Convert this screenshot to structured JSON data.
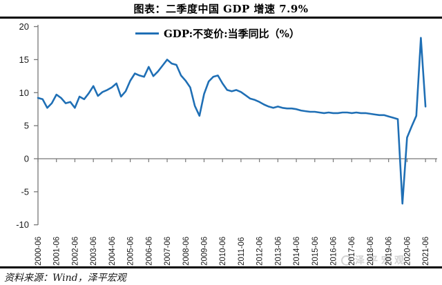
{
  "title": "图表：二季度中国 GDP 增速 7.9%",
  "legend": {
    "label": "GDP:不变价:当季同比（%）"
  },
  "footer": {
    "source": "资料来源：Wind，泽平宏观"
  },
  "watermark": {
    "text": "泽平宏观"
  },
  "colors": {
    "line": "#1F6FB5",
    "axis": "#767676",
    "tick_label": "#1a1a1a",
    "rule": "#000000",
    "watermark": "#a6a6a6"
  },
  "chart_data": {
    "type": "line",
    "title": "图表：二季度中国 GDP 增速 7.9%",
    "series_name": "GDP:不变价:当季同比（%）",
    "ylim": [
      -10,
      20
    ],
    "yticks": [
      20,
      15,
      10,
      5,
      0,
      -5,
      -10
    ],
    "grid": false,
    "legend_position": "top-center",
    "zero_axis_with_ticks": true,
    "xtick_labels": [
      "2000-06",
      "2001-06",
      "2002-06",
      "2003-06",
      "2004-06",
      "2005-06",
      "2006-06",
      "2007-06",
      "2008-06",
      "2009-06",
      "2010-06",
      "2011-06",
      "2012-06",
      "2013-06",
      "2014-06",
      "2015-06",
      "2016-06",
      "2017-06",
      "2018-06",
      "2019-06",
      "2020-06",
      "2021-06"
    ],
    "x": [
      "2000-06",
      "2000-09",
      "2000-12",
      "2001-03",
      "2001-06",
      "2001-09",
      "2001-12",
      "2002-03",
      "2002-06",
      "2002-09",
      "2002-12",
      "2003-03",
      "2003-06",
      "2003-09",
      "2003-12",
      "2004-03",
      "2004-06",
      "2004-09",
      "2004-12",
      "2005-03",
      "2005-06",
      "2005-09",
      "2005-12",
      "2006-03",
      "2006-06",
      "2006-09",
      "2006-12",
      "2007-03",
      "2007-06",
      "2007-09",
      "2007-12",
      "2008-03",
      "2008-06",
      "2008-09",
      "2008-12",
      "2009-03",
      "2009-06",
      "2009-09",
      "2009-12",
      "2010-03",
      "2010-06",
      "2010-09",
      "2010-12",
      "2011-03",
      "2011-06",
      "2011-09",
      "2011-12",
      "2012-03",
      "2012-06",
      "2012-09",
      "2012-12",
      "2013-03",
      "2013-06",
      "2013-09",
      "2013-12",
      "2014-03",
      "2014-06",
      "2014-09",
      "2014-12",
      "2015-03",
      "2015-06",
      "2015-09",
      "2015-12",
      "2016-03",
      "2016-06",
      "2016-09",
      "2016-12",
      "2017-03",
      "2017-06",
      "2017-09",
      "2017-12",
      "2018-03",
      "2018-06",
      "2018-09",
      "2018-12",
      "2019-03",
      "2019-06",
      "2019-09",
      "2019-12",
      "2020-03",
      "2020-06",
      "2020-09",
      "2020-12",
      "2021-03",
      "2021-06"
    ],
    "values": [
      9.2,
      9.0,
      7.7,
      8.4,
      9.7,
      9.2,
      8.4,
      8.6,
      7.7,
      9.4,
      9.0,
      9.9,
      11.0,
      9.5,
      10.1,
      10.4,
      10.8,
      11.4,
      9.4,
      10.2,
      11.8,
      12.9,
      12.6,
      12.4,
      13.9,
      12.5,
      13.2,
      14.1,
      15.0,
      14.4,
      14.2,
      12.6,
      11.8,
      10.8,
      8.0,
      6.5,
      9.8,
      11.7,
      12.4,
      12.6,
      11.4,
      10.4,
      10.2,
      10.4,
      10.1,
      9.6,
      9.1,
      8.9,
      8.6,
      8.2,
      7.9,
      7.7,
      7.9,
      7.7,
      7.6,
      7.6,
      7.5,
      7.3,
      7.2,
      7.1,
      7.1,
      7.0,
      6.9,
      7.0,
      6.9,
      6.9,
      7.0,
      7.0,
      6.9,
      7.0,
      6.9,
      6.9,
      6.8,
      6.7,
      6.6,
      6.6,
      6.4,
      6.2,
      6.0,
      -6.8,
      3.2,
      4.9,
      6.5,
      18.3,
      7.9
    ]
  }
}
